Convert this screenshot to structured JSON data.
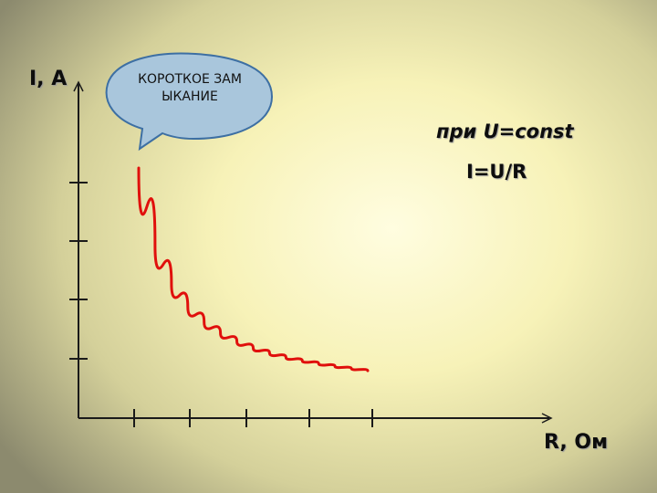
{
  "labels": {
    "y_axis": "I, A",
    "x_axis": "R, Ом",
    "condition": "при U=const",
    "formula": "I=U/R",
    "callout": "КОРОТКОЕ ЗАМЫКАНИЕ"
  },
  "colors": {
    "curve": "#e0100c",
    "axes": "#1a1a1a",
    "callout_fill": "#a9c6dc",
    "callout_stroke": "#3d6fa3"
  },
  "chart_data": {
    "type": "line",
    "title": "",
    "xlabel": "R, Ом",
    "ylabel": "I, A",
    "x_ticks": 5,
    "y_ticks": 4,
    "series": [
      {
        "values_note": "",
        "x": [
          1.0,
          1.5,
          2.0,
          2.5,
          3.0,
          3.5,
          4.0,
          4.5,
          5.0,
          5.5,
          6.0,
          6.5,
          7.0,
          7.5,
          8.0
        ],
        "y": [
          4.2,
          2.8,
          2.1,
          1.68,
          1.4,
          1.2,
          1.05,
          0.93,
          0.84,
          0.76,
          0.7,
          0.65,
          0.6,
          0.56,
          0.52
        ]
      }
    ]
  }
}
